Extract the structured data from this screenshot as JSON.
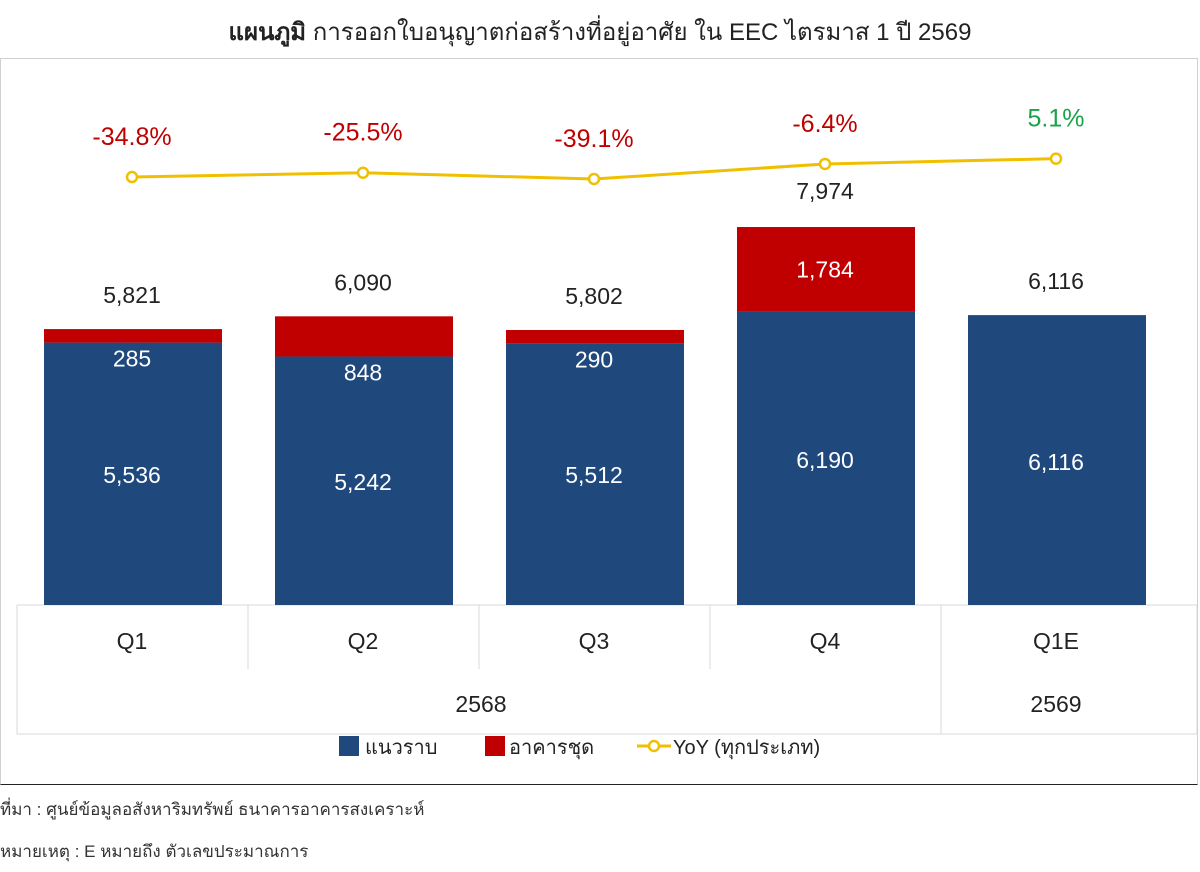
{
  "title": {
    "bold": "แผนภูมิ",
    "rest": " การออกใบอนุญาตก่อสร้างที่อยู่อาศัย ใน EEC ไตรมาส 1 ปี 2569"
  },
  "chart_data": {
    "type": "bar",
    "stacked": true,
    "categories": [
      "Q1",
      "Q2",
      "Q3",
      "Q4",
      "Q1E"
    ],
    "groups": [
      {
        "label": "2568",
        "categories": [
          "Q1",
          "Q2",
          "Q3",
          "Q4"
        ]
      },
      {
        "label": "2569",
        "categories": [
          "Q1E"
        ]
      }
    ],
    "series": [
      {
        "name": "แนวราบ",
        "values": [
          5536,
          5242,
          5512,
          6190,
          6116
        ],
        "color": "#1f497d"
      },
      {
        "name": "อาคารชุด",
        "values": [
          285,
          848,
          290,
          1784,
          0
        ],
        "color": "#c00000"
      }
    ],
    "totals": [
      "5,821",
      "6,090",
      "5,802",
      "7,974",
      "6,116"
    ],
    "bottom_labels": [
      "5,536",
      "5,242",
      "5,512",
      "6,190",
      "6,116"
    ],
    "top_labels": [
      "285",
      "848",
      "290",
      "1,784",
      ""
    ],
    "yoy": {
      "name": "YoY (ทุกประเภท)",
      "labels": [
        "-34.8%",
        "-25.5%",
        "-39.1%",
        "-6.4%",
        "5.1%"
      ],
      "values": [
        -34.8,
        -25.5,
        -39.1,
        -6.4,
        5.1
      ],
      "color": "#f0c000",
      "label_colors": [
        "#c00000",
        "#c00000",
        "#c00000",
        "#c00000",
        "#1aa34a"
      ]
    },
    "ylim": [
      0,
      8500
    ],
    "legend_position": "bottom"
  },
  "source_text": "ที่มา : ศูนย์ข้อมูลอสังหาริมทรัพย์ ธนาคารอาคารสงเคราะห์",
  "remark_text": "หมายเหตุ : E หมายถึง ตัวเลขประมาณการ"
}
